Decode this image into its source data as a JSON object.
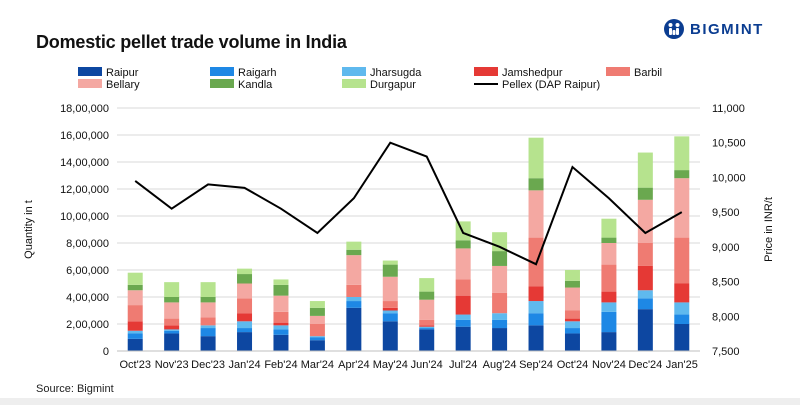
{
  "title": "Domestic pellet trade volume in India",
  "brand": {
    "name": "BIGMINT",
    "color": "#0b3d91"
  },
  "source": "Source: Bigmint",
  "chart_data": {
    "type": "bar",
    "stacked": true,
    "categories": [
      "Oct'23",
      "Nov'23",
      "Dec'23",
      "Jan'24",
      "Feb'24",
      "Mar'24",
      "Apr'24",
      "May'24",
      "Jun'24",
      "Jul'24",
      "Aug'24",
      "Sep'24",
      "Oct'24",
      "Nov'24",
      "Dec'24",
      "Jan'25"
    ],
    "ylabel": "Quantity in t",
    "y2label": "Price in INR/t",
    "ylim": [
      0,
      1800000
    ],
    "yticks": [
      0,
      200000,
      400000,
      600000,
      800000,
      1000000,
      1200000,
      1400000,
      1600000,
      1800000
    ],
    "ytick_labels": [
      "0",
      "2,00,000",
      "4,00,000",
      "6,00,000",
      "8,00,000",
      "10,00,000",
      "12,00,000",
      "14,00,000",
      "16,00,000",
      "18,00,000"
    ],
    "y2lim": [
      7500,
      11000
    ],
    "y2ticks": [
      7500,
      8000,
      8500,
      9000,
      9500,
      10000,
      10500,
      11000
    ],
    "y2tick_labels": [
      "7,500",
      "8,000",
      "8,500",
      "9,000",
      "9,500",
      "10,000",
      "10,500",
      "11,000"
    ],
    "grid": true,
    "legend_position": "top",
    "series": [
      {
        "name": "Raipur",
        "color": "#0d47a1",
        "values": [
          90000,
          130000,
          110000,
          140000,
          120000,
          80000,
          320000,
          220000,
          160000,
          180000,
          170000,
          190000,
          130000,
          140000,
          310000,
          200000
        ]
      },
      {
        "name": "Raigarh",
        "color": "#1e88e5",
        "values": [
          40000,
          20000,
          60000,
          30000,
          40000,
          20000,
          50000,
          60000,
          10000,
          50000,
          60000,
          90000,
          40000,
          150000,
          80000,
          70000
        ]
      },
      {
        "name": "Jharsugda",
        "color": "#5fb9ee",
        "values": [
          20000,
          10000,
          20000,
          50000,
          30000,
          10000,
          30000,
          20000,
          10000,
          40000,
          50000,
          90000,
          50000,
          70000,
          60000,
          90000
        ]
      },
      {
        "name": "Jamshedpur",
        "color": "#e53935",
        "values": [
          70000,
          30000,
          0,
          60000,
          20000,
          0,
          0,
          20000,
          10000,
          140000,
          0,
          110000,
          20000,
          80000,
          180000,
          140000
        ]
      },
      {
        "name": "Barbil",
        "color": "#ef7b72",
        "values": [
          120000,
          50000,
          60000,
          110000,
          80000,
          90000,
          90000,
          50000,
          40000,
          120000,
          150000,
          360000,
          60000,
          200000,
          170000,
          340000
        ]
      },
      {
        "name": "Bellary",
        "color": "#f4a8a2",
        "values": [
          110000,
          120000,
          110000,
          110000,
          120000,
          60000,
          220000,
          180000,
          150000,
          230000,
          200000,
          350000,
          170000,
          160000,
          320000,
          440000
        ]
      },
      {
        "name": "Kandla",
        "color": "#6aa84f",
        "values": [
          40000,
          40000,
          40000,
          70000,
          80000,
          60000,
          40000,
          90000,
          60000,
          60000,
          110000,
          90000,
          50000,
          40000,
          90000,
          60000
        ]
      },
      {
        "name": "Durgapur",
        "color": "#b6e38e",
        "values": [
          90000,
          110000,
          110000,
          40000,
          40000,
          50000,
          60000,
          30000,
          100000,
          140000,
          140000,
          300000,
          80000,
          140000,
          260000,
          250000
        ]
      }
    ],
    "line": {
      "name": "Pellex (DAP Raipur)",
      "color": "#000000",
      "values": [
        9950,
        9550,
        9900,
        9850,
        9550,
        9200,
        9700,
        10500,
        10300,
        9200,
        9000,
        8750,
        10150,
        9700,
        9200,
        9500
      ]
    }
  }
}
